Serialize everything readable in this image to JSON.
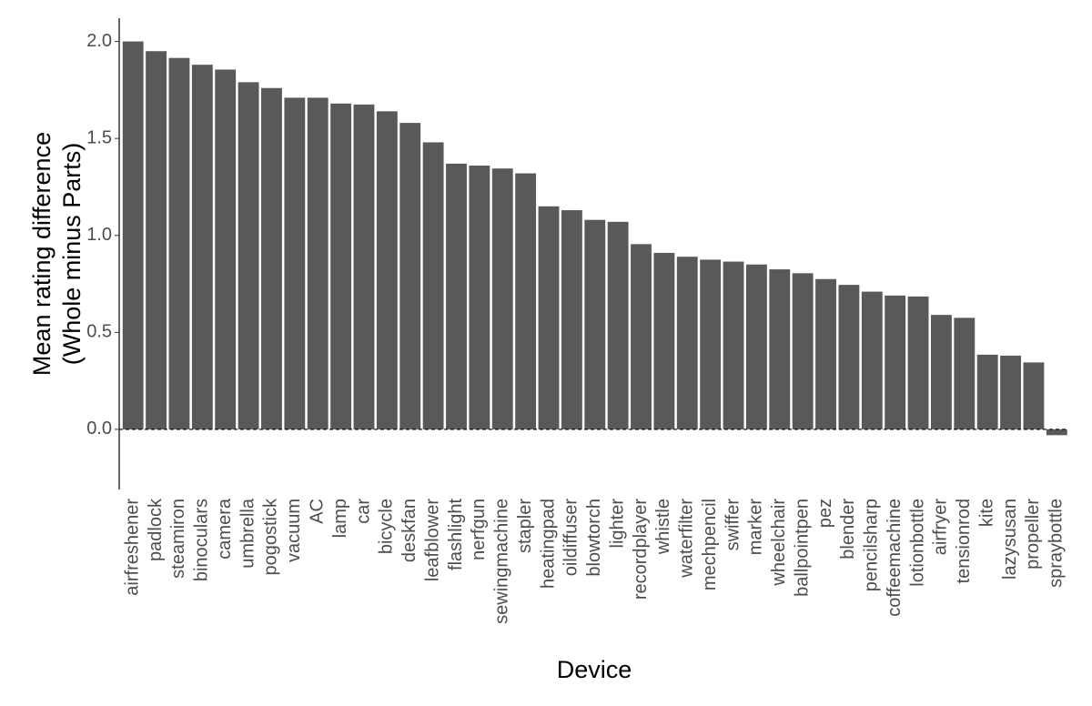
{
  "chart_data": {
    "type": "bar",
    "xlabel": "Device",
    "ylabel": [
      "Mean rating difference",
      "(Whole minus Parts)"
    ],
    "categories": [
      "airfreshener",
      "padlock",
      "steamiron",
      "binoculars",
      "camera",
      "umbrella",
      "pogostick",
      "vacuum",
      "AC",
      "lamp",
      "car",
      "bicycle",
      "deskfan",
      "leafblower",
      "flashlight",
      "nerfgun",
      "sewingmachine",
      "stapler",
      "heatingpad",
      "oildiffuser",
      "blowtorch",
      "lighter",
      "recordplayer",
      "whistle",
      "waterfilter",
      "mechpencil",
      "swiffer",
      "marker",
      "wheelchair",
      "ballpointpen",
      "pez",
      "blender",
      "pencilsharp",
      "coffeemachine",
      "lotionbottle",
      "airfryer",
      "tensionrod",
      "kite",
      "lazysusan",
      "propeller",
      "spraybottle"
    ],
    "values": [
      2.0,
      1.95,
      1.915,
      1.88,
      1.855,
      1.79,
      1.76,
      1.71,
      1.71,
      1.68,
      1.675,
      1.64,
      1.58,
      1.48,
      1.37,
      1.36,
      1.345,
      1.32,
      1.15,
      1.13,
      1.08,
      1.07,
      0.955,
      0.91,
      0.89,
      0.875,
      0.865,
      0.85,
      0.825,
      0.805,
      0.775,
      0.745,
      0.71,
      0.69,
      0.685,
      0.59,
      0.575,
      0.385,
      0.38,
      0.345,
      -0.03
    ],
    "color": "#595959",
    "ylim": [
      -0.31,
      2.12
    ],
    "yticks": [
      {
        "value": 0,
        "label": "0.0"
      },
      0.5,
      {
        "value": 1,
        "label": "1.0"
      },
      1.5,
      {
        "value": 2,
        "label": "2.0"
      }
    ],
    "hline": 0
  }
}
